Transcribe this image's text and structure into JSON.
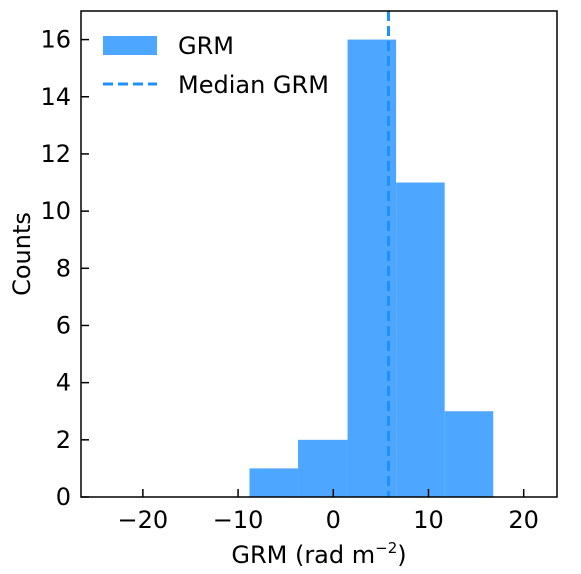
{
  "chart_data": {
    "type": "bar",
    "subtype": "histogram",
    "xlabel": "GRM (rad m",
    "xlabel_superscript": "−2",
    "xlabel_suffix": ")",
    "ylabel": "Counts",
    "xlim": [
      -26.5,
      23.5
    ],
    "ylim": [
      0,
      17
    ],
    "xticks": [
      -20,
      -10,
      0,
      10,
      20
    ],
    "xtick_labels": [
      "−20",
      "−10",
      "0",
      "10",
      "20"
    ],
    "yticks": [
      0,
      2,
      4,
      6,
      8,
      10,
      12,
      14,
      16
    ],
    "ytick_labels": [
      "0",
      "2",
      "4",
      "6",
      "8",
      "10",
      "12",
      "14",
      "16"
    ],
    "bins": [
      {
        "x0": -8.8,
        "x1": -3.7,
        "count": 1
      },
      {
        "x0": -3.7,
        "x1": 1.5,
        "count": 2
      },
      {
        "x0": 1.5,
        "x1": 6.6,
        "count": 16
      },
      {
        "x0": 6.6,
        "x1": 11.7,
        "count": 11
      },
      {
        "x0": 11.7,
        "x1": 16.8,
        "count": 3
      }
    ],
    "median": 5.8,
    "bar_color": "#4da6ff",
    "median_color": "#1e90ff",
    "legend": {
      "placement": "top-left",
      "entries": [
        {
          "label": "GRM",
          "kind": "patch"
        },
        {
          "label": "Median GRM",
          "kind": "dashed-line"
        }
      ]
    },
    "grid": false
  }
}
